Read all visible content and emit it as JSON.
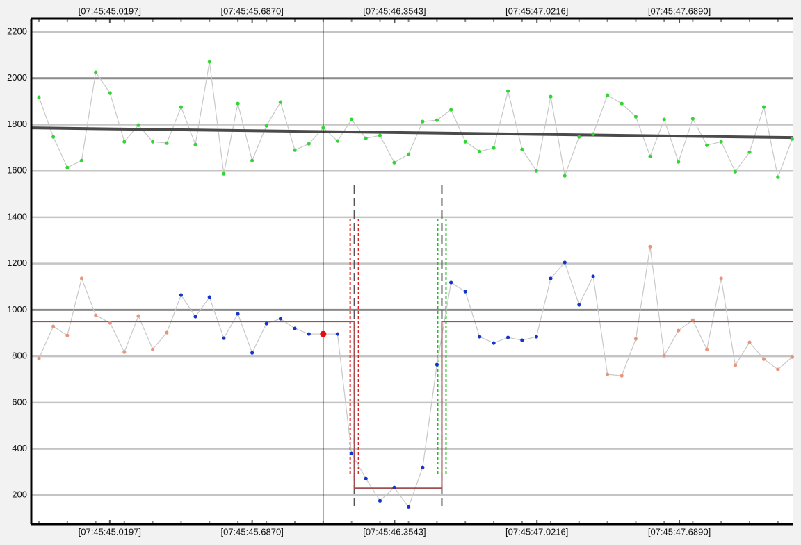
{
  "chart_data": {
    "type": "line",
    "x": [
      44.688,
      44.755,
      44.821,
      44.888,
      44.954,
      45.021,
      45.088,
      45.154,
      45.221,
      45.287,
      45.354,
      45.421,
      45.487,
      45.554,
      45.62,
      45.687,
      45.754,
      45.82,
      45.887,
      45.953,
      46.02,
      46.087,
      46.153,
      46.22,
      46.286,
      46.353,
      46.42,
      46.486,
      46.553,
      46.619,
      46.686,
      46.753,
      46.819,
      46.886,
      46.952,
      47.019,
      47.086,
      47.152,
      47.219,
      47.285,
      47.352,
      47.419,
      47.485,
      47.552,
      47.618,
      47.685,
      47.752,
      47.818,
      47.885,
      47.951,
      48.018,
      48.085,
      48.151,
      48.218
    ],
    "series": [
      {
        "color": "#35d435",
        "line_color": "#c8c8c8",
        "values": [
          1918,
          1747,
          1615,
          1645,
          2026,
          1936,
          1726,
          1798,
          1726,
          1720,
          1876,
          1714,
          2071,
          1588,
          1891,
          1645,
          1795,
          1897,
          1690,
          1717,
          1786,
          1729,
          1822,
          1741,
          1753,
          1636,
          1672,
          1813,
          1819,
          1864,
          1726,
          1684,
          1699,
          1945,
          1693,
          1600,
          1921,
          1579,
          1747,
          1759,
          1927,
          1891,
          1834,
          1663,
          1822,
          1639,
          1825,
          1711,
          1726,
          1597,
          1681,
          1876,
          1573,
          1738
        ]
      },
      {
        "line_color": "#c8c8c8",
        "point_colors": [
          "#e8957a",
          "#e8957a",
          "#e8957a",
          "#e8957a",
          "#e8957a",
          "#e8957a",
          "#e8957a",
          "#e8957a",
          "#e8957a",
          "#e8957a",
          "#1435c8",
          "#1435c8",
          "#1435c8",
          "#1435c8",
          "#1435c8",
          "#1435c8",
          "#1435c8",
          "#1435c8",
          "#1435c8",
          "#1435c8",
          "#e01010",
          "#1435c8",
          "#1435c8",
          "#1435c8",
          "#1435c8",
          "#1435c8",
          "#1435c8",
          "#1435c8",
          "#1435c8",
          "#1435c8",
          "#1435c8",
          "#1435c8",
          "#1435c8",
          "#1435c8",
          "#1435c8",
          "#1435c8",
          "#1435c8",
          "#1435c8",
          "#1435c8",
          "#1435c8",
          "#e8957a",
          "#e8957a",
          "#e8957a",
          "#e8957a",
          "#e8957a",
          "#e8957a",
          "#e8957a",
          "#e8957a",
          "#e8957a",
          "#e8957a",
          "#e8957a",
          "#e8957a",
          "#e8957a",
          "#e8957a"
        ],
        "values": [
          791,
          929,
          890,
          1136,
          977,
          944,
          818,
          974,
          830,
          902,
          1064,
          971,
          1055,
          878,
          983,
          815,
          941,
          962,
          920,
          896,
          896,
          896,
          380,
          272,
          176,
          233,
          149,
          320,
          764,
          1118,
          1079,
          884,
          857,
          881,
          869,
          884,
          1136,
          1205,
          1022,
          1145,
          722,
          716,
          875,
          1273,
          803,
          911,
          956,
          830,
          1136,
          761,
          860,
          788,
          743,
          797
        ]
      }
    ],
    "highlight_index": 20,
    "trend": {
      "color": "#4a4a4a",
      "x": [
        44.652,
        48.22
      ],
      "values": [
        1786,
        1744
      ]
    },
    "step": {
      "color": "#a05050",
      "x": [
        44.652,
        46.166,
        46.166,
        46.576,
        46.576,
        48.22
      ],
      "values": [
        950,
        950,
        230,
        230,
        950,
        950
      ]
    },
    "xlim": [
      44.652,
      48.22
    ],
    "ylim": [
      75,
      2257
    ],
    "xticks": [
      {
        "value": 45.0197,
        "label": "[07:45:45.0197]"
      },
      {
        "value": 45.687,
        "label": "[07:45:45.6870]"
      },
      {
        "value": 46.3543,
        "label": "[07:45:46.3543]"
      },
      {
        "value": 47.0216,
        "label": "[07:45:47.0216]"
      },
      {
        "value": 47.689,
        "label": "[07:45:47.6890]"
      }
    ],
    "yticks": [
      200,
      400,
      600,
      800,
      1000,
      1200,
      1400,
      1600,
      1800,
      2000,
      2200
    ],
    "grid": true
  }
}
